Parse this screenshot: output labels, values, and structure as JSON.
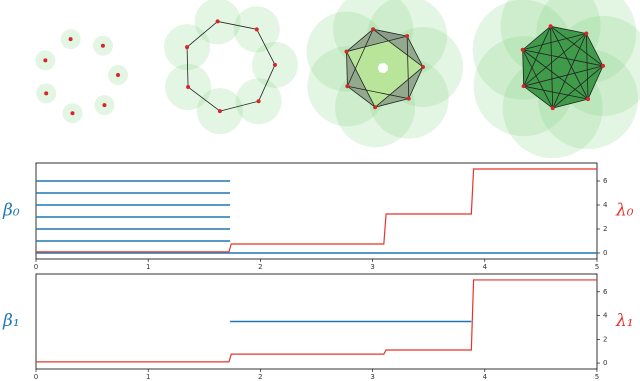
{
  "chart_data": [
    {
      "type": "line",
      "y_label": "β₀",
      "y2_label": "λ₀",
      "xlim": [
        0,
        5
      ],
      "xticks": [
        0,
        1,
        2,
        3,
        4,
        5
      ],
      "y2lim": [
        -0.5,
        7.5
      ],
      "y2ticks": [
        0,
        2,
        4,
        6
      ],
      "barcode": {
        "color": "#1f77b4",
        "intervals": [
          [
            0,
            1.73
          ],
          [
            0,
            1.73
          ],
          [
            0,
            1.73
          ],
          [
            0,
            1.73
          ],
          [
            0,
            1.73
          ],
          [
            0,
            1.73
          ],
          [
            0,
            5
          ]
        ]
      },
      "series": [
        {
          "color": "#e8332a",
          "axis": "y2",
          "x": [
            0,
            1.72,
            1.74,
            3.1,
            3.12,
            3.88,
            3.9,
            5
          ],
          "values": [
            0.1,
            0.1,
            0.75,
            0.75,
            3.25,
            3.25,
            7,
            7
          ]
        }
      ]
    },
    {
      "type": "line",
      "y_label": "β₁",
      "y2_label": "λ₁",
      "xlim": [
        0,
        5
      ],
      "xticks": [
        0,
        1,
        2,
        3,
        4,
        5
      ],
      "y2lim": [
        -0.5,
        7.5
      ],
      "y2ticks": [
        0,
        2,
        4,
        6
      ],
      "barcode": {
        "color": "#1f77b4",
        "intervals": [
          [
            1.73,
            3.88
          ]
        ]
      },
      "series": [
        {
          "color": "#e8332a",
          "axis": "y2",
          "x": [
            0,
            1.72,
            1.74,
            3.1,
            3.12,
            3.88,
            3.9,
            5
          ],
          "values": [
            0.1,
            0.1,
            0.75,
            0.75,
            1.1,
            1.1,
            7,
            7
          ]
        }
      ]
    }
  ]
}
